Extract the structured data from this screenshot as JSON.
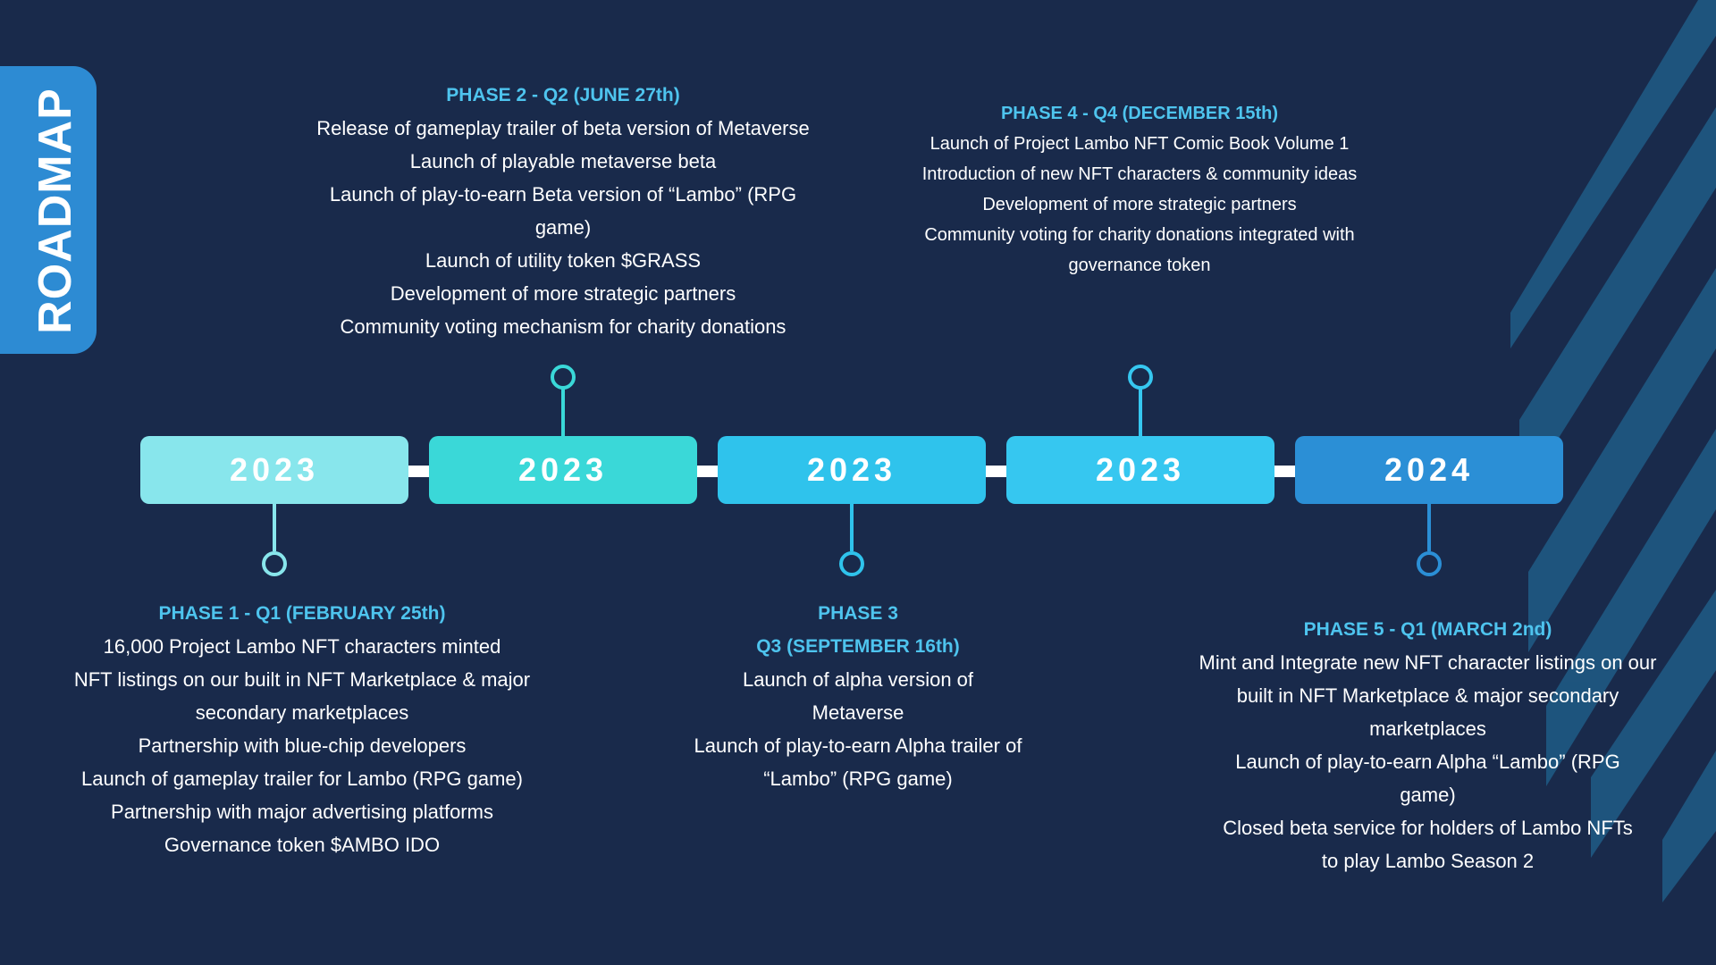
{
  "roadmap_label": "ROADMAP",
  "colors": {
    "background": "#192a4b",
    "accent_tab": "#2d8bd3",
    "heading": "#4ec4ee",
    "stripe": "#1f5c86"
  },
  "timeline": {
    "years": [
      {
        "label": "2023",
        "color": "#88e6ec"
      },
      {
        "label": "2023",
        "color": "#3ad8d8"
      },
      {
        "label": "2023",
        "color": "#2fc3ec"
      },
      {
        "label": "2023",
        "color": "#36c7f0"
      },
      {
        "label": "2024",
        "color": "#2b8fd6"
      }
    ]
  },
  "phases": [
    {
      "heading": "PHASE 1 - Q1 (FEBRUARY 25th)",
      "items": [
        "16,000 Project Lambo NFT characters minted",
        "NFT listings on our built in NFT Marketplace & major secondary marketplaces",
        "Partnership with blue-chip developers",
        "Launch of gameplay trailer for Lambo (RPG game)",
        "Partnership with major advertising platforms",
        "Governance token $AMBO IDO"
      ]
    },
    {
      "heading": "PHASE 2 - Q2 (JUNE 27th)",
      "items": [
        "Release of gameplay trailer of beta version of Metaverse",
        "Launch of playable metaverse beta",
        "Launch of play-to-earn Beta version of “Lambo” (RPG game)",
        "Launch of utility token $GRASS",
        "Development of more strategic partners",
        "Community voting mechanism for charity donations"
      ]
    },
    {
      "heading": "PHASE 3",
      "subheading": "Q3 (SEPTEMBER 16th)",
      "items": [
        "Launch of alpha version of Metaverse",
        "Launch of play-to-earn Alpha trailer of “Lambo” (RPG game)"
      ]
    },
    {
      "heading": "PHASE 4 - Q4 (DECEMBER 15th)",
      "items": [
        "Launch of Project Lambo NFT Comic Book Volume 1",
        "Introduction of new NFT characters & community ideas",
        "Development of more strategic partners",
        "Community voting for charity donations integrated with governance token"
      ]
    },
    {
      "heading": "PHASE 5 - Q1 (MARCH 2nd)",
      "items": [
        "Mint and Integrate new NFT character listings on our built in NFT Marketplace & major secondary marketplaces",
        "Launch of play-to-earn Alpha “Lambo” (RPG game)",
        "Closed beta service for holders of Lambo NFTs to play Lambo Season 2"
      ]
    }
  ]
}
